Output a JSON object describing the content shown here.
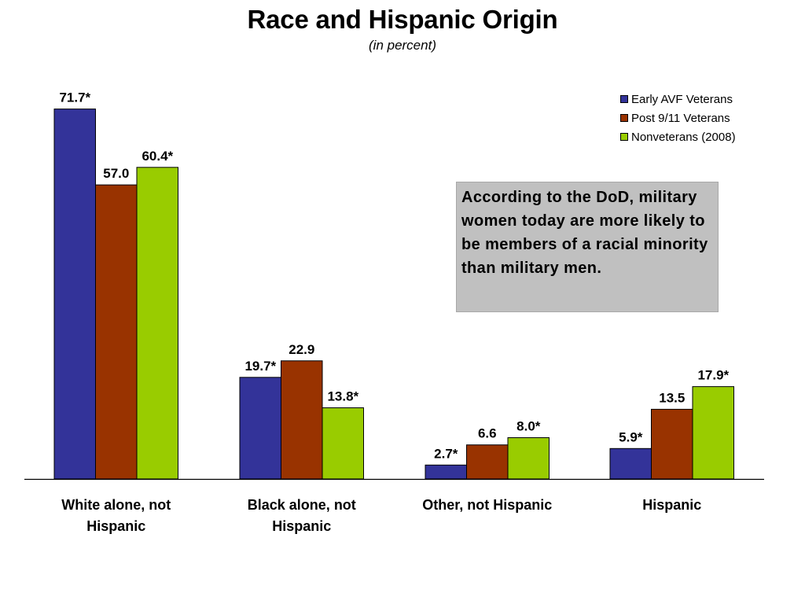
{
  "chart_data": {
    "type": "bar",
    "title": "Race and Hispanic Origin",
    "subtitle": "(in percent)",
    "categories": [
      [
        "White alone, not",
        "Hispanic"
      ],
      [
        "Black alone, not",
        "Hispanic"
      ],
      [
        "Other, not Hispanic"
      ],
      [
        "Hispanic"
      ]
    ],
    "series": [
      {
        "name": "Early AVF Veterans",
        "color": "#333399",
        "values": [
          71.7,
          19.7,
          2.7,
          5.9
        ],
        "labels": [
          "71.7*",
          "19.7*",
          "2.7*",
          "5.9*"
        ]
      },
      {
        "name": "Post 9/11 Veterans",
        "color": "#993300",
        "values": [
          57.0,
          22.9,
          6.6,
          13.5
        ],
        "labels": [
          "57.0",
          "22.9",
          "6.6",
          "13.5"
        ]
      },
      {
        "name": "Nonveterans (2008)",
        "color": "#99cc00",
        "values": [
          60.4,
          13.8,
          8.0,
          17.9
        ],
        "labels": [
          "60.4*",
          "13.8*",
          "8.0*",
          "17.9*"
        ]
      }
    ],
    "ylim": [
      0,
      80
    ],
    "grid": false,
    "legend_position": "top-right",
    "annotation": "According to the DoD, military women today are more likely to be members of a racial minority than military men."
  }
}
